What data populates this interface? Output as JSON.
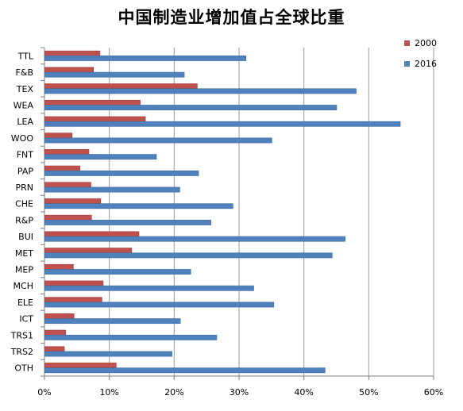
{
  "chart_data": {
    "type": "bar",
    "orientation": "horizontal",
    "title": "中国制造业增加值占全球比重",
    "xlabel": "",
    "ylabel": "",
    "xlim": [
      0,
      0.6
    ],
    "x_ticks": [
      "0%",
      "10%",
      "20%",
      "30%",
      "40%",
      "50%",
      "60%"
    ],
    "x_tick_values": [
      0,
      0.1,
      0.2,
      0.3,
      0.4,
      0.5,
      0.6
    ],
    "grid": "vertical",
    "legend_position": "top-right",
    "categories": [
      "TTL",
      "F&B",
      "TEX",
      "WEA",
      "LEA",
      "WOO",
      "FNT",
      "PAP",
      "PRN",
      "CHE",
      "R&P",
      "BUI",
      "MET",
      "MEP",
      "MCH",
      "ELE",
      "ICT",
      "TRS1",
      "TRS2",
      "OTH"
    ],
    "series": [
      {
        "name": "2000",
        "color": "#C0504D",
        "values": [
          0.085,
          0.075,
          0.235,
          0.147,
          0.155,
          0.042,
          0.068,
          0.054,
          0.071,
          0.086,
          0.072,
          0.145,
          0.134,
          0.044,
          0.09,
          0.088,
          0.045,
          0.032,
          0.03,
          0.11
        ]
      },
      {
        "name": "2016",
        "color": "#4F81BD",
        "values": [
          0.31,
          0.215,
          0.48,
          0.45,
          0.548,
          0.35,
          0.172,
          0.237,
          0.208,
          0.29,
          0.256,
          0.463,
          0.443,
          0.225,
          0.322,
          0.353,
          0.209,
          0.265,
          0.196,
          0.432
        ]
      }
    ]
  }
}
